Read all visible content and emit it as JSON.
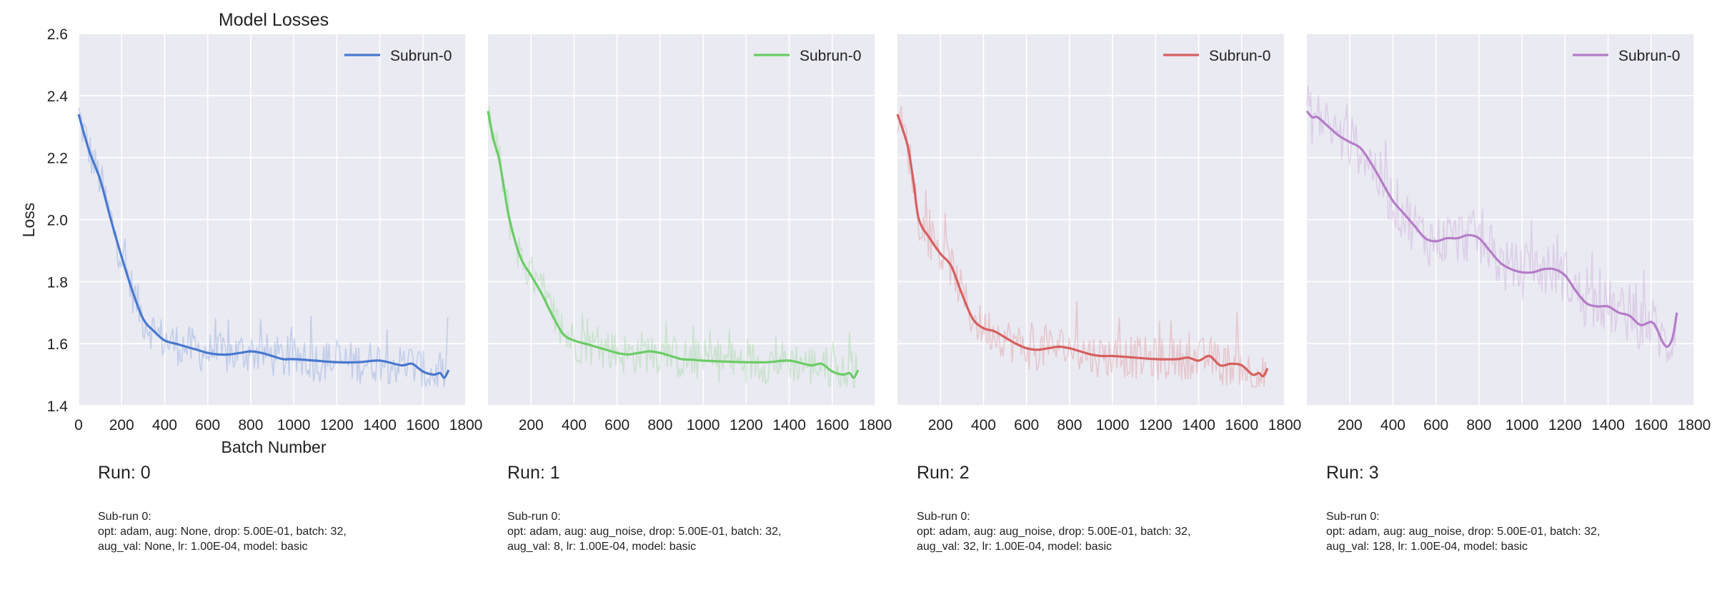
{
  "chart_title": "Model Losses",
  "chart_data": [
    {
      "type": "line",
      "title": "Model Losses",
      "xlabel": "Batch Number",
      "ylabel": "Loss",
      "xlim": [
        0,
        1800
      ],
      "ylim": [
        1.4,
        2.6
      ],
      "x_ticks": [
        0,
        200,
        400,
        600,
        800,
        1000,
        1200,
        1400,
        1600,
        1800
      ],
      "y_ticks": [
        1.4,
        1.6,
        1.8,
        2.0,
        2.2,
        2.4,
        2.6
      ],
      "grid": true,
      "legend_position": "top-right",
      "series": [
        {
          "name": "Subrun-0",
          "color": "#4878cf",
          "x": [
            0,
            50,
            100,
            150,
            200,
            250,
            300,
            350,
            400,
            450,
            500,
            550,
            600,
            650,
            700,
            750,
            800,
            850,
            900,
            950,
            1000,
            1100,
            1200,
            1300,
            1400,
            1500,
            1550,
            1600,
            1650,
            1680,
            1700,
            1720
          ],
          "y": [
            2.34,
            2.22,
            2.13,
            2.0,
            1.88,
            1.77,
            1.68,
            1.64,
            1.61,
            1.6,
            1.59,
            1.58,
            1.57,
            1.565,
            1.565,
            1.57,
            1.575,
            1.57,
            1.56,
            1.55,
            1.55,
            1.545,
            1.54,
            1.54,
            1.545,
            1.53,
            1.535,
            1.51,
            1.5,
            1.505,
            1.49,
            1.515
          ]
        }
      ]
    },
    {
      "type": "line",
      "xlim": [
        0,
        1800
      ],
      "ylim": [
        1.4,
        2.6
      ],
      "x_ticks": [
        200,
        400,
        600,
        800,
        1000,
        1200,
        1400,
        1600,
        1800
      ],
      "grid": true,
      "legend_position": "top-right",
      "series": [
        {
          "name": "Subrun-0",
          "color": "#6acc65",
          "x": [
            0,
            25,
            50,
            75,
            100,
            150,
            200,
            250,
            300,
            350,
            400,
            450,
            500,
            550,
            600,
            650,
            700,
            750,
            800,
            850,
            900,
            950,
            1000,
            1100,
            1200,
            1300,
            1400,
            1500,
            1550,
            1600,
            1650,
            1680,
            1700,
            1720
          ],
          "y": [
            2.35,
            2.26,
            2.2,
            2.1,
            2.0,
            1.88,
            1.82,
            1.76,
            1.69,
            1.63,
            1.61,
            1.6,
            1.59,
            1.58,
            1.57,
            1.565,
            1.57,
            1.575,
            1.57,
            1.56,
            1.55,
            1.548,
            1.545,
            1.542,
            1.54,
            1.54,
            1.545,
            1.53,
            1.535,
            1.51,
            1.5,
            1.505,
            1.49,
            1.515
          ]
        }
      ]
    },
    {
      "type": "line",
      "xlim": [
        0,
        1800
      ],
      "ylim": [
        1.4,
        2.6
      ],
      "x_ticks": [
        200,
        400,
        600,
        800,
        1000,
        1200,
        1400,
        1600,
        1800
      ],
      "grid": true,
      "legend_position": "top-right",
      "series": [
        {
          "name": "Subrun-0",
          "color": "#d65f5f",
          "x": [
            0,
            25,
            50,
            75,
            100,
            150,
            200,
            250,
            300,
            350,
            400,
            450,
            500,
            550,
            600,
            650,
            700,
            750,
            800,
            850,
            900,
            950,
            1000,
            1100,
            1200,
            1300,
            1350,
            1400,
            1450,
            1500,
            1550,
            1600,
            1650,
            1680,
            1700,
            1720
          ],
          "y": [
            2.34,
            2.29,
            2.23,
            2.12,
            2.0,
            1.94,
            1.89,
            1.85,
            1.76,
            1.68,
            1.65,
            1.64,
            1.62,
            1.6,
            1.585,
            1.58,
            1.585,
            1.59,
            1.585,
            1.575,
            1.565,
            1.56,
            1.56,
            1.555,
            1.55,
            1.55,
            1.555,
            1.545,
            1.56,
            1.53,
            1.535,
            1.53,
            1.5,
            1.505,
            1.495,
            1.52
          ]
        }
      ]
    },
    {
      "type": "line",
      "xlim": [
        0,
        1800
      ],
      "ylim": [
        1.4,
        2.6
      ],
      "x_ticks": [
        200,
        400,
        600,
        800,
        1000,
        1200,
        1400,
        1600,
        1800
      ],
      "grid": true,
      "legend_position": "top-right",
      "series": [
        {
          "name": "Subrun-0",
          "color": "#b47cc7",
          "x": [
            0,
            25,
            50,
            100,
            150,
            200,
            250,
            300,
            350,
            400,
            450,
            500,
            550,
            600,
            650,
            700,
            750,
            800,
            850,
            900,
            950,
            1000,
            1050,
            1100,
            1150,
            1200,
            1250,
            1300,
            1350,
            1400,
            1450,
            1500,
            1550,
            1600,
            1625,
            1650,
            1675,
            1700,
            1720
          ],
          "y": [
            2.35,
            2.33,
            2.33,
            2.3,
            2.27,
            2.25,
            2.23,
            2.18,
            2.12,
            2.06,
            2.02,
            1.98,
            1.94,
            1.93,
            1.94,
            1.94,
            1.95,
            1.94,
            1.9,
            1.86,
            1.84,
            1.83,
            1.83,
            1.84,
            1.84,
            1.82,
            1.77,
            1.73,
            1.72,
            1.72,
            1.7,
            1.69,
            1.66,
            1.67,
            1.65,
            1.61,
            1.59,
            1.62,
            1.7
          ]
        }
      ]
    }
  ],
  "runs": [
    {
      "title": "Run: 0",
      "subrun_header": "Sub-run 0:",
      "params": "opt: adam, aug: None, drop: 5.00E-01, batch: 32, aug_val: None, lr: 1.00E-04, model: basic"
    },
    {
      "title": "Run: 1",
      "subrun_header": "Sub-run 0:",
      "params": "opt: adam, aug: aug_noise, drop: 5.00E-01, batch: 32, aug_val: 8, lr: 1.00E-04, model: basic"
    },
    {
      "title": "Run: 2",
      "subrun_header": "Sub-run 0:",
      "params": "opt: adam, aug: aug_noise, drop: 5.00E-01, batch: 32, aug_val: 32, lr: 1.00E-04, model: basic"
    },
    {
      "title": "Run: 3",
      "subrun_header": "Sub-run 0:",
      "params": "opt: adam, aug: aug_noise, drop: 5.00E-01, batch: 32, aug_val: 128, lr: 1.00E-04, model: basic"
    }
  ],
  "colors": {
    "plot_background": "#eaeaf2",
    "grid": "#ffffff",
    "text": "#222222"
  }
}
